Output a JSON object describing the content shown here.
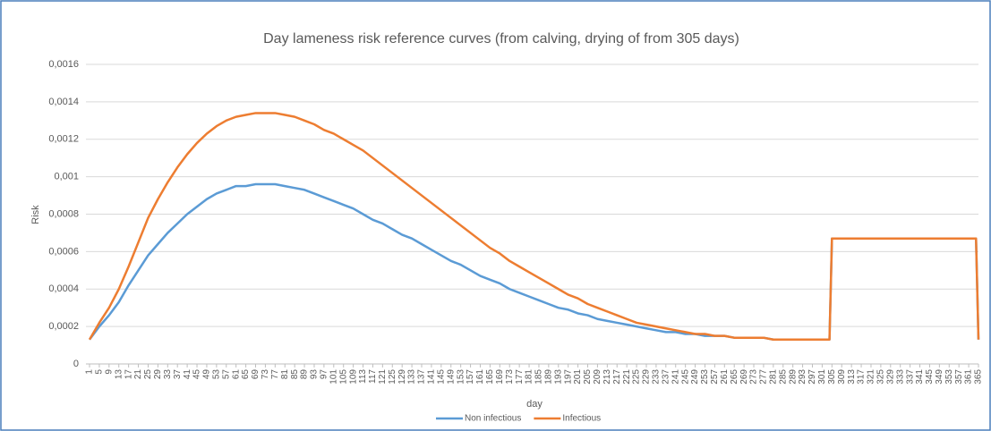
{
  "chart_data": {
    "type": "line",
    "title": "Day lameness risk reference curves (from calving, drying of from 305 days)",
    "x_label": "day",
    "y_label": "Risk",
    "x": [
      1,
      5,
      9,
      13,
      17,
      21,
      25,
      29,
      33,
      37,
      41,
      45,
      49,
      53,
      57,
      61,
      65,
      69,
      73,
      77,
      81,
      85,
      89,
      93,
      97,
      101,
      105,
      109,
      113,
      117,
      121,
      125,
      129,
      133,
      137,
      141,
      145,
      149,
      153,
      157,
      161,
      165,
      169,
      173,
      177,
      181,
      185,
      189,
      193,
      197,
      201,
      205,
      209,
      213,
      217,
      221,
      225,
      229,
      233,
      237,
      241,
      245,
      249,
      253,
      257,
      261,
      265,
      269,
      273,
      277,
      281,
      285,
      289,
      293,
      297,
      301,
      304,
      305,
      309,
      313,
      317,
      321,
      325,
      329,
      333,
      337,
      341,
      345,
      349,
      353,
      357,
      361,
      364,
      365
    ],
    "series": [
      {
        "name": "Non infectious",
        "color": "#5b9bd5",
        "values": [
          0.00013,
          0.0002,
          0.00026,
          0.00033,
          0.00042,
          0.0005,
          0.00058,
          0.00064,
          0.0007,
          0.00075,
          0.0008,
          0.00084,
          0.00088,
          0.00091,
          0.00093,
          0.00095,
          0.00095,
          0.00096,
          0.00096,
          0.00096,
          0.00095,
          0.00094,
          0.00093,
          0.00091,
          0.00089,
          0.00087,
          0.00085,
          0.00083,
          0.0008,
          0.00077,
          0.00075,
          0.00072,
          0.00069,
          0.00067,
          0.00064,
          0.00061,
          0.00058,
          0.00055,
          0.00053,
          0.0005,
          0.00047,
          0.00045,
          0.00043,
          0.0004,
          0.00038,
          0.00036,
          0.00034,
          0.00032,
          0.0003,
          0.00029,
          0.00027,
          0.00026,
          0.00024,
          0.00023,
          0.00022,
          0.00021,
          0.0002,
          0.00019,
          0.00018,
          0.00017,
          0.00017,
          0.00016,
          0.00016,
          0.00015,
          0.00015,
          0.00015,
          0.00014,
          0.00014,
          0.00014,
          0.00014,
          0.00013,
          0.00013,
          0.00013,
          0.00013,
          0.00013,
          0.00013,
          0.00013,
          0.00067,
          0.00067,
          0.00067,
          0.00067,
          0.00067,
          0.00067,
          0.00067,
          0.00067,
          0.00067,
          0.00067,
          0.00067,
          0.00067,
          0.00067,
          0.00067,
          0.00067,
          0.00067,
          0.00013
        ]
      },
      {
        "name": "Infectious",
        "color": "#ed7d31",
        "values": [
          0.00013,
          0.00022,
          0.0003,
          0.0004,
          0.00052,
          0.00065,
          0.00078,
          0.00088,
          0.00097,
          0.00105,
          0.00112,
          0.00118,
          0.00123,
          0.00127,
          0.0013,
          0.00132,
          0.00133,
          0.00134,
          0.00134,
          0.00134,
          0.00133,
          0.00132,
          0.0013,
          0.00128,
          0.00125,
          0.00123,
          0.0012,
          0.00117,
          0.00114,
          0.0011,
          0.00106,
          0.00102,
          0.00098,
          0.00094,
          0.0009,
          0.00086,
          0.00082,
          0.00078,
          0.00074,
          0.0007,
          0.00066,
          0.00062,
          0.00059,
          0.00055,
          0.00052,
          0.00049,
          0.00046,
          0.00043,
          0.0004,
          0.00037,
          0.00035,
          0.00032,
          0.0003,
          0.00028,
          0.00026,
          0.00024,
          0.00022,
          0.00021,
          0.0002,
          0.00019,
          0.00018,
          0.00017,
          0.00016,
          0.00016,
          0.00015,
          0.00015,
          0.00014,
          0.00014,
          0.00014,
          0.00014,
          0.00013,
          0.00013,
          0.00013,
          0.00013,
          0.00013,
          0.00013,
          0.00013,
          0.00067,
          0.00067,
          0.00067,
          0.00067,
          0.00067,
          0.00067,
          0.00067,
          0.00067,
          0.00067,
          0.00067,
          0.00067,
          0.00067,
          0.00067,
          0.00067,
          0.00067,
          0.00067,
          0.00013
        ]
      }
    ],
    "xlim": [
      1,
      365
    ],
    "xticks": [
      1,
      5,
      9,
      13,
      17,
      21,
      25,
      29,
      33,
      37,
      41,
      45,
      49,
      53,
      57,
      61,
      65,
      69,
      73,
      77,
      81,
      85,
      89,
      93,
      97,
      101,
      105,
      109,
      113,
      117,
      121,
      125,
      129,
      133,
      137,
      141,
      145,
      149,
      153,
      157,
      161,
      165,
      169,
      173,
      177,
      181,
      185,
      189,
      193,
      197,
      201,
      205,
      209,
      213,
      217,
      221,
      225,
      229,
      233,
      237,
      241,
      245,
      249,
      253,
      257,
      261,
      265,
      269,
      273,
      277,
      281,
      285,
      289,
      293,
      297,
      301,
      305,
      309,
      313,
      317,
      321,
      325,
      329,
      333,
      337,
      341,
      345,
      349,
      353,
      357,
      361,
      365
    ],
    "ylim": [
      0,
      0.0016
    ],
    "yticks": [
      0,
      {
        "value": 0.0002,
        "label": "0,0002"
      },
      {
        "value": 0.0004,
        "label": "0,0004"
      },
      {
        "value": 0.0006,
        "label": "0,0006"
      },
      {
        "value": 0.0008,
        "label": "0,0008"
      },
      {
        "value": 0.001,
        "label": "0,001"
      },
      {
        "value": 0.0012,
        "label": "0,0012"
      },
      {
        "value": 0.0014,
        "label": "0,0014"
      },
      {
        "value": 0.0016,
        "label": "0,0016"
      }
    ],
    "grid": true,
    "legend": "bottom"
  }
}
